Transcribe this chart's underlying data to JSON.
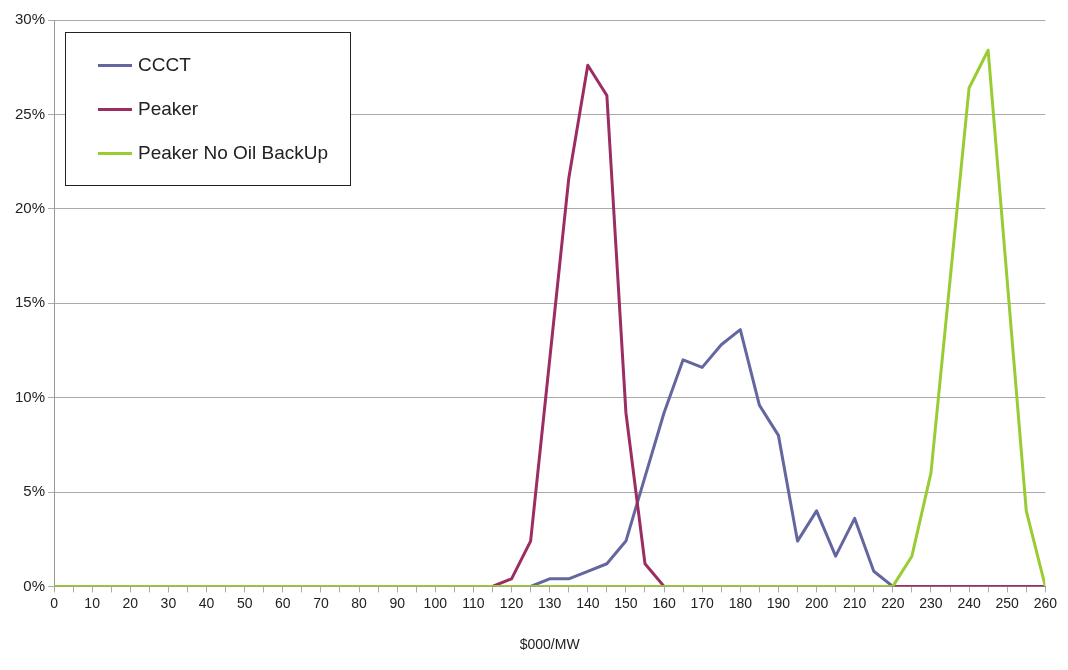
{
  "chart_data": {
    "type": "line",
    "xlabel": "$000/MW",
    "x": [
      0,
      5,
      10,
      15,
      20,
      25,
      30,
      35,
      40,
      45,
      50,
      55,
      60,
      65,
      70,
      75,
      80,
      85,
      90,
      95,
      100,
      105,
      110,
      115,
      120,
      125,
      130,
      135,
      140,
      145,
      150,
      155,
      160,
      165,
      170,
      175,
      180,
      185,
      190,
      195,
      200,
      205,
      210,
      215,
      220,
      225,
      230,
      235,
      240,
      245,
      250,
      255,
      260
    ],
    "series": [
      {
        "name": "CCCT",
        "color": "#6466a0",
        "values": [
          null,
          null,
          null,
          null,
          null,
          null,
          null,
          null,
          null,
          null,
          null,
          null,
          null,
          null,
          null,
          null,
          null,
          null,
          null,
          null,
          null,
          null,
          null,
          null,
          null,
          0,
          0.4,
          0.4,
          0.8,
          1.2,
          2.4,
          5.8,
          9.2,
          12.0,
          11.6,
          12.8,
          13.6,
          9.6,
          8.0,
          2.4,
          4.0,
          1.6,
          3.6,
          0.8,
          0,
          null,
          null,
          null,
          null,
          null,
          null,
          null,
          null
        ]
      },
      {
        "name": "Peaker",
        "color": "#9b2d62",
        "values": [
          null,
          null,
          null,
          null,
          null,
          null,
          null,
          null,
          null,
          null,
          null,
          null,
          null,
          null,
          null,
          null,
          null,
          null,
          null,
          null,
          null,
          null,
          null,
          0,
          0.4,
          2.4,
          12.0,
          21.6,
          27.6,
          26.0,
          9.2,
          1.2,
          0,
          null,
          null,
          null,
          null,
          null,
          null,
          null,
          null,
          null,
          null,
          null,
          0,
          0,
          0,
          0,
          0,
          0,
          0,
          0,
          0
        ]
      },
      {
        "name": "Peaker No Oil BackUp",
        "color": "#99cc33",
        "values": [
          0,
          0,
          0,
          0,
          0,
          0,
          0,
          0,
          0,
          0,
          0,
          0,
          0,
          0,
          0,
          0,
          0,
          0,
          0,
          0,
          0,
          0,
          0,
          0,
          0,
          0,
          0,
          0,
          0,
          0,
          0,
          0,
          0,
          0,
          0,
          0,
          0,
          0,
          0,
          0,
          0,
          0,
          0,
          0,
          0,
          1.6,
          6.0,
          16.2,
          26.4,
          28.4,
          16.2,
          4.0,
          0
        ]
      }
    ],
    "xlim": [
      0,
      260
    ],
    "xticks": [
      0,
      {
        "value": 5,
        "label": null
      },
      10,
      {
        "value": 15,
        "label": null
      },
      20,
      {
        "value": 25,
        "label": null
      },
      30,
      {
        "value": 35,
        "label": null
      },
      40,
      {
        "value": 45,
        "label": null
      },
      50,
      {
        "value": 55,
        "label": null
      },
      60,
      {
        "value": 65,
        "label": null
      },
      70,
      {
        "value": 75,
        "label": null
      },
      80,
      {
        "value": 85,
        "label": null
      },
      90,
      {
        "value": 95,
        "label": null
      },
      100,
      {
        "value": 105,
        "label": null
      },
      110,
      {
        "value": 115,
        "label": null
      },
      120,
      {
        "value": 125,
        "label": null
      },
      130,
      {
        "value": 135,
        "label": null
      },
      140,
      {
        "value": 145,
        "label": null
      },
      150,
      {
        "value": 155,
        "label": null
      },
      160,
      {
        "value": 165,
        "label": null
      },
      170,
      {
        "value": 175,
        "label": null
      },
      180,
      {
        "value": 185,
        "label": null
      },
      190,
      {
        "value": 195,
        "label": null
      },
      200,
      {
        "value": 205,
        "label": null
      },
      210,
      {
        "value": 215,
        "label": null
      },
      220,
      {
        "value": 225,
        "label": null
      },
      230,
      {
        "value": 235,
        "label": null
      },
      240,
      {
        "value": 245,
        "label": null
      },
      250,
      {
        "value": 255,
        "label": null
      },
      260
    ],
    "ylim": [
      0,
      30
    ],
    "yticks": [
      {
        "value": 0,
        "label": "0%"
      },
      {
        "value": 5,
        "label": "5%"
      },
      {
        "value": 10,
        "label": "10%"
      },
      {
        "value": 15,
        "label": "15%"
      },
      {
        "value": 20,
        "label": "20%"
      },
      {
        "value": 25,
        "label": "25%"
      },
      {
        "value": 30,
        "label": "30%"
      }
    ],
    "grid": "y",
    "legend": "top left",
    "marker": "none",
    "line_style": "solid"
  }
}
